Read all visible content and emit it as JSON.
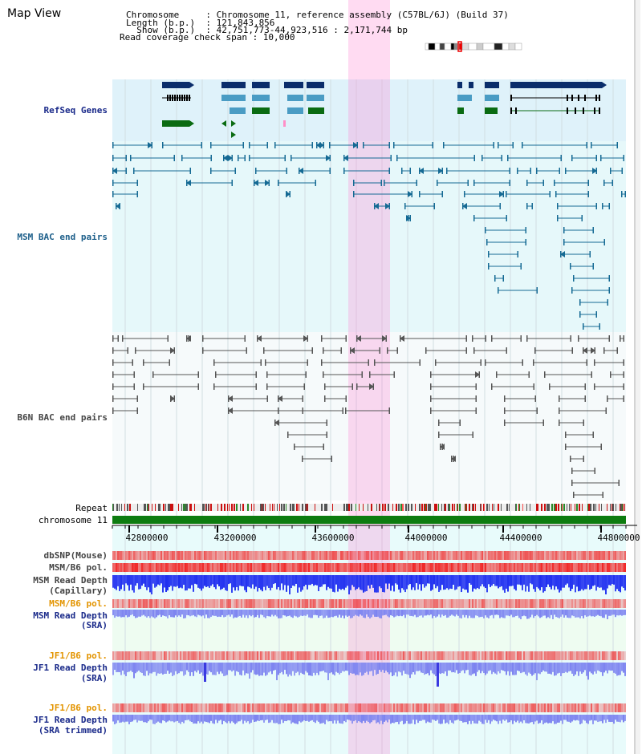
{
  "header": {
    "title": "Map View",
    "lines": [
      "Chromosome     : Chromosome 11, reference assembly (C57BL/6J) (Build 37)",
      "Length (b.p.)  : 121,843,856",
      "  Show (b.p.)  : 42,751,773-44,923,516 : 2,171,744 bp",
      "Read coverage check span : 10,000"
    ]
  },
  "tracks": {
    "refseq": "RefSeq Genes",
    "msm_bac": "MSM BAC end pairs",
    "b6n_bac": "B6N BAC end pairs",
    "repeat": "Repeat",
    "chromosome": "chromosome 11",
    "dbsnp": "dbSNP(Mouse)",
    "msm_b6_pol_1": "MSM/B6 pol.",
    "msm_read_depth_cap_1": "MSM Read Depth",
    "msm_read_depth_cap_2": "(Capillary)",
    "msm_b6_pol_2": "MSM/B6 pol.",
    "msm_read_depth_sra_1": "MSM Read Depth",
    "msm_read_depth_sra_2": "(SRA)",
    "jf1_b6_pol_1": "JF1/B6 pol.",
    "jf1_read_depth_sra_1": "JF1 Read Depth",
    "jf1_read_depth_sra_2": "(SRA)",
    "jf1_b6_pol_2": "JF1/B6 pol.",
    "jf1_read_depth_trim_1": "JF1 Read Depth",
    "jf1_read_depth_trim_2": "(SRA trimmed)"
  },
  "axis": {
    "ticks": [
      "42800000",
      "43200000",
      "43600000",
      "44000000",
      "44400000",
      "44800000"
    ]
  },
  "colors": {
    "refseq_dark": "#0a2d6b",
    "refseq_light": "#4a9cc4",
    "refseq_green": "#0a6b12",
    "msm_bac": "#156a94",
    "b6n_bac": "#555555",
    "highlight": "#ff7fcf",
    "chromosome": "#0d7c10",
    "depth_blue": "#1f2ff0",
    "depth_light": "#7d84f0"
  }
}
